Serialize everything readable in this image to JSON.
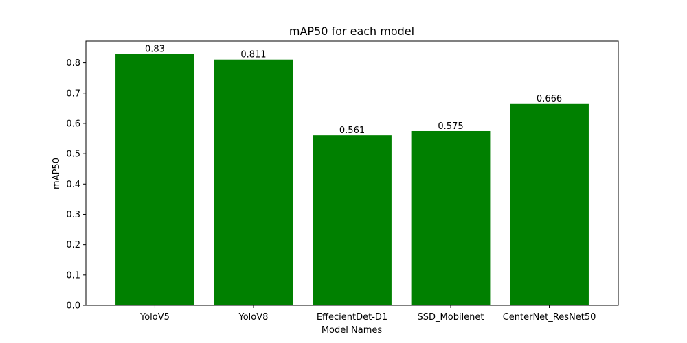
{
  "chart_data": {
    "type": "bar",
    "title": "mAP50 for each model",
    "xlabel": "Model Names",
    "ylabel": "mAP50",
    "categories": [
      "YoloV5",
      "YoloV8",
      "EffecientDet-D1",
      "SSD_Mobilenet",
      "CenterNet_ResNet50"
    ],
    "values": [
      0.83,
      0.811,
      0.561,
      0.575,
      0.666
    ],
    "value_labels": [
      "0.83",
      "0.811",
      "0.561",
      "0.575",
      "0.666"
    ],
    "yticks": [
      "0.0",
      "0.1",
      "0.2",
      "0.3",
      "0.4",
      "0.5",
      "0.6",
      "0.7",
      "0.8"
    ],
    "ylim": [
      0,
      0.8715
    ],
    "grid": false,
    "legend": "none",
    "bar_color": "#008000"
  }
}
